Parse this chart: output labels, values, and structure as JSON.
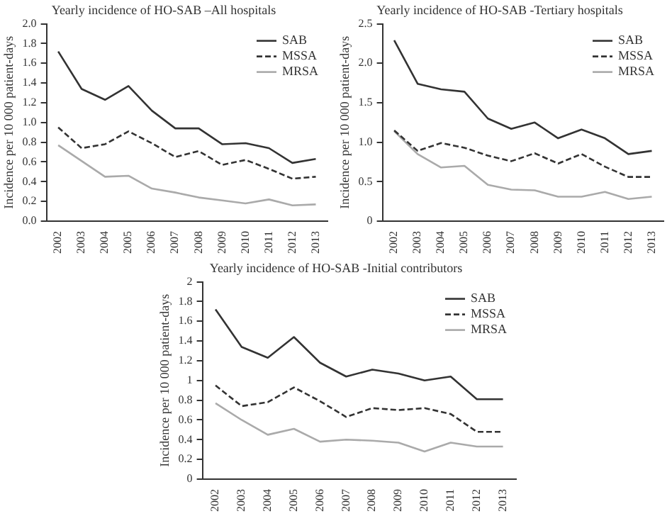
{
  "chart_data": [
    {
      "type": "line",
      "title": "Yearly incidence of HO-SAB –All hospitals",
      "ylabel": "Incidence per 10 000 patient-days",
      "categories": [
        "2002",
        "2003",
        "2004",
        "2005",
        "2006",
        "2007",
        "2008",
        "2009",
        "2010",
        "2011",
        "2012",
        "2013"
      ],
      "series": [
        {
          "name": "SAB",
          "color": "#333333",
          "line_style": "solid",
          "values": [
            1.72,
            1.34,
            1.23,
            1.37,
            1.12,
            0.94,
            0.94,
            0.78,
            0.79,
            0.74,
            0.59,
            0.63
          ]
        },
        {
          "name": "MSSA",
          "color": "#333333",
          "line_style": "dashed",
          "values": [
            0.95,
            0.74,
            0.78,
            0.91,
            0.79,
            0.65,
            0.71,
            0.57,
            0.62,
            0.53,
            0.43,
            0.45
          ]
        },
        {
          "name": "MRSA",
          "color": "#aaaaaa",
          "line_style": "solid",
          "values": [
            0.77,
            0.61,
            0.45,
            0.46,
            0.33,
            0.29,
            0.24,
            0.21,
            0.18,
            0.22,
            0.16,
            0.17
          ]
        }
      ],
      "ylim": [
        0,
        2
      ],
      "yticks": [
        {
          "value": 0,
          "label": "0.0"
        },
        {
          "value": 0.2,
          "label": "0.2"
        },
        {
          "value": 0.4,
          "label": "0.4"
        },
        {
          "value": 0.6,
          "label": "0.6"
        },
        {
          "value": 0.8,
          "label": "0.8"
        },
        {
          "value": 1,
          "label": "1.0"
        },
        {
          "value": 1.2,
          "label": "1.2"
        },
        {
          "value": 1.4,
          "label": "1.4"
        },
        {
          "value": 1.6,
          "label": "1.6"
        },
        {
          "value": 1.8,
          "label": "1.8"
        },
        {
          "value": 2,
          "label": "2.0"
        }
      ],
      "grid": false,
      "legend": "top right",
      "marker": "none"
    },
    {
      "type": "line",
      "title": "Yearly incidence of HO-SAB -Tertiary hospitals",
      "ylabel": "Incidence per 10 000 patient-days",
      "categories": [
        "2002",
        "2003",
        "2004",
        "2005",
        "2006",
        "2007",
        "2008",
        "2009",
        "2010",
        "2011",
        "2012",
        "2013"
      ],
      "series": [
        {
          "name": "SAB",
          "color": "#333333",
          "line_style": "solid",
          "values": [
            2.29,
            1.74,
            1.67,
            1.64,
            1.3,
            1.17,
            1.25,
            1.05,
            1.16,
            1.05,
            0.85,
            0.89
          ]
        },
        {
          "name": "MSSA",
          "color": "#333333",
          "line_style": "dashed",
          "values": [
            1.15,
            0.89,
            0.99,
            0.93,
            0.83,
            0.76,
            0.86,
            0.73,
            0.85,
            0.69,
            0.56,
            0.56
          ]
        },
        {
          "name": "MRSA",
          "color": "#aaaaaa",
          "line_style": "solid",
          "values": [
            1.14,
            0.85,
            0.68,
            0.7,
            0.46,
            0.4,
            0.39,
            0.31,
            0.31,
            0.37,
            0.28,
            0.31
          ]
        }
      ],
      "ylim": [
        0,
        2.5
      ],
      "yticks": [
        0,
        {
          "value": 0.5,
          "label": "0.5"
        },
        {
          "value": 1,
          "label": "1.0"
        },
        {
          "value": 1.5,
          "label": "1.5"
        },
        {
          "value": 2,
          "label": "2.0"
        },
        {
          "value": 2.5,
          "label": "2.5"
        }
      ],
      "grid": false,
      "legend": "top right",
      "marker": "none"
    },
    {
      "type": "line",
      "title": "Yearly incidence of HO-SAB -Initial contributors",
      "ylabel": "Incidence per 10 000 patient-days",
      "categories": [
        "2002",
        "2003",
        "2004",
        "2005",
        "2006",
        "2007",
        "2008",
        "2009",
        "2010",
        "2011",
        "2012",
        "2013"
      ],
      "series": [
        {
          "name": "SAB",
          "color": "#333333",
          "line_style": "solid",
          "values": [
            1.72,
            1.34,
            1.23,
            1.44,
            1.18,
            1.04,
            1.11,
            1.07,
            1.0,
            1.04,
            0.81,
            0.81
          ]
        },
        {
          "name": "MSSA",
          "color": "#333333",
          "line_style": "dashed",
          "values": [
            0.95,
            0.74,
            0.78,
            0.93,
            0.79,
            0.63,
            0.72,
            0.7,
            0.72,
            0.66,
            0.48,
            0.48
          ]
        },
        {
          "name": "MRSA",
          "color": "#aaaaaa",
          "line_style": "solid",
          "values": [
            0.77,
            0.6,
            0.45,
            0.51,
            0.38,
            0.4,
            0.39,
            0.37,
            0.28,
            0.37,
            0.33,
            0.33
          ]
        }
      ],
      "ylim": [
        0,
        2
      ],
      "yticks": [
        0,
        0.2,
        0.4,
        0.6,
        0.8,
        1,
        1.2,
        1.4,
        1.6,
        1.8,
        2
      ],
      "grid": false,
      "legend": "top right",
      "marker": "none"
    }
  ]
}
